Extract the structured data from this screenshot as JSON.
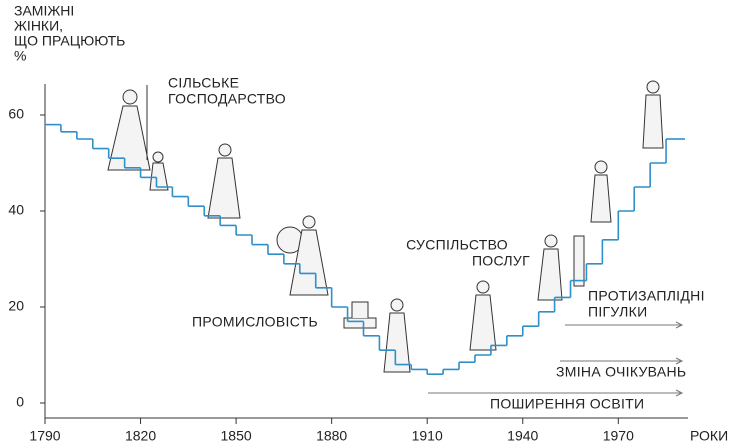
{
  "chart_data": {
    "type": "step",
    "y_label": [
      "ЗАМІЖНІ",
      "ЖІНКИ,",
      "ЩО ПРАЦЮЮТЬ",
      "%"
    ],
    "x_label": "РОКИ",
    "x": [
      1790,
      1795,
      1800,
      1805,
      1810,
      1815,
      1820,
      1825,
      1830,
      1835,
      1840,
      1845,
      1850,
      1855,
      1860,
      1865,
      1870,
      1875,
      1880,
      1885,
      1890,
      1895,
      1900,
      1905,
      1910,
      1915,
      1920,
      1925,
      1930,
      1935,
      1940,
      1945,
      1950,
      1955,
      1960,
      1965,
      1970,
      1975,
      1980,
      1985,
      1990
    ],
    "values": [
      58,
      56.5,
      55,
      53,
      51,
      49,
      47,
      45,
      43,
      41,
      39,
      37,
      35,
      33,
      31,
      29,
      27,
      24,
      20,
      17,
      14,
      11,
      8,
      7,
      6,
      7,
      8.5,
      10,
      12,
      14,
      16,
      19,
      22,
      25.5,
      29,
      34,
      40,
      45,
      50,
      55,
      55
    ],
    "color": "#2f8fc9",
    "xlim": [
      1790,
      1990
    ],
    "ylim": [
      0,
      65
    ],
    "xticks": [
      1790,
      1820,
      1850,
      1880,
      1910,
      1940,
      1970
    ],
    "yticks": [
      0,
      20,
      40,
      60
    ],
    "annotations": [
      {
        "lines": [
          "СІЛЬСЬКЕ",
          "ГОСПОДАРСТВО"
        ]
      },
      {
        "lines": [
          "ПРОМИСЛОВІСТЬ"
        ]
      },
      {
        "lines": [
          "СУСПІЛЬСТВО",
          "ПОСЛУГ"
        ]
      },
      {
        "lines": [
          "ПРОТИЗАПЛІДНІ",
          "ПІГУЛКИ"
        ]
      },
      {
        "lines": [
          "ЗМІНА ОЧІКУВАНЬ"
        ]
      },
      {
        "lines": [
          "ПОШИРЕННЯ ОСВІТИ"
        ]
      }
    ]
  }
}
